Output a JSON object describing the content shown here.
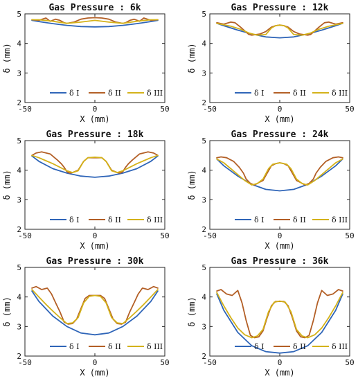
{
  "figure": {
    "xlabel": "X (mm)",
    "ylabel": "δ (mm)"
  },
  "legend": {
    "entries": [
      "δ I",
      "δ II",
      "δ III"
    ],
    "colors": [
      "#2f65b8",
      "#b35f26",
      "#d4b21a"
    ],
    "placement": "bottom-right"
  },
  "chart_data": [
    {
      "type": "line",
      "title": "Gas Pressure : 6k",
      "xlabel": "X (mm)",
      "ylabel": "δ (mm)",
      "xlim": [
        -50,
        50
      ],
      "ylim": [
        2,
        5
      ],
      "xticks": [
        -50,
        0,
        50
      ],
      "yticks": [
        2,
        3,
        4,
        5
      ],
      "series": [
        {
          "name": "δ I",
          "x": [
            -45,
            -40,
            -30,
            -20,
            -10,
            0,
            10,
            20,
            30,
            40,
            45
          ],
          "y": [
            4.78,
            4.74,
            4.67,
            4.61,
            4.57,
            4.56,
            4.57,
            4.61,
            4.67,
            4.74,
            4.78
          ]
        },
        {
          "name": "δ II",
          "x": [
            -45,
            -40,
            -35,
            -32,
            -28,
            -25,
            -22,
            -20,
            -15,
            -10,
            -5,
            0,
            5,
            10,
            15,
            20,
            22,
            25,
            28,
            32,
            35,
            40,
            45
          ],
          "y": [
            4.8,
            4.78,
            4.86,
            4.75,
            4.82,
            4.78,
            4.7,
            4.68,
            4.72,
            4.82,
            4.86,
            4.87,
            4.86,
            4.82,
            4.72,
            4.68,
            4.7,
            4.78,
            4.82,
            4.75,
            4.86,
            4.78,
            4.8
          ]
        },
        {
          "name": "δ III",
          "x": [
            -45,
            -40,
            -30,
            -20,
            -10,
            0,
            10,
            20,
            30,
            40,
            45
          ],
          "y": [
            4.8,
            4.8,
            4.75,
            4.68,
            4.72,
            4.78,
            4.72,
            4.68,
            4.75,
            4.8,
            4.8
          ]
        }
      ]
    },
    {
      "type": "line",
      "title": "Gas Pressure : 12k",
      "xlabel": "X (mm)",
      "ylabel": "δ (mm)",
      "xlim": [
        -50,
        50
      ],
      "ylim": [
        2,
        5
      ],
      "xticks": [
        -50,
        0,
        50
      ],
      "yticks": [
        2,
        3,
        4,
        5
      ],
      "series": [
        {
          "name": "δ I",
          "x": [
            -45,
            -40,
            -30,
            -20,
            -10,
            0,
            10,
            20,
            30,
            40,
            45
          ],
          "y": [
            4.68,
            4.6,
            4.45,
            4.32,
            4.22,
            4.19,
            4.22,
            4.32,
            4.45,
            4.6,
            4.68
          ]
        },
        {
          "name": "δ II",
          "x": [
            -45,
            -40,
            -35,
            -32,
            -28,
            -25,
            -22,
            -20,
            -17,
            -14,
            -10,
            -6,
            -3,
            0,
            3,
            6,
            10,
            14,
            17,
            20,
            22,
            25,
            28,
            32,
            35,
            40,
            45
          ],
          "y": [
            4.7,
            4.65,
            4.72,
            4.7,
            4.55,
            4.42,
            4.3,
            4.28,
            4.3,
            4.32,
            4.4,
            4.55,
            4.6,
            4.62,
            4.6,
            4.55,
            4.4,
            4.32,
            4.3,
            4.28,
            4.3,
            4.42,
            4.55,
            4.7,
            4.72,
            4.65,
            4.7
          ]
        },
        {
          "name": "δ III",
          "x": [
            -45,
            -40,
            -35,
            -28,
            -22,
            -16,
            -10,
            -6,
            -3,
            0,
            3,
            6,
            10,
            16,
            22,
            28,
            35,
            40,
            45
          ],
          "y": [
            4.68,
            4.63,
            4.58,
            4.48,
            4.35,
            4.28,
            4.3,
            4.52,
            4.6,
            4.62,
            4.6,
            4.52,
            4.3,
            4.28,
            4.35,
            4.48,
            4.58,
            4.63,
            4.68
          ]
        }
      ]
    },
    {
      "type": "line",
      "title": "Gas Pressure : 18k",
      "xlabel": "X (mm)",
      "ylabel": "δ (mm)",
      "xlim": [
        -50,
        50
      ],
      "ylim": [
        2,
        5
      ],
      "xticks": [
        -50,
        0,
        50
      ],
      "yticks": [
        2,
        3,
        4,
        5
      ],
      "series": [
        {
          "name": "δ I",
          "x": [
            -45,
            -40,
            -30,
            -20,
            -10,
            0,
            10,
            20,
            30,
            40,
            45
          ],
          "y": [
            4.48,
            4.3,
            4.05,
            3.9,
            3.8,
            3.76,
            3.8,
            3.9,
            4.05,
            4.3,
            4.48
          ]
        },
        {
          "name": "δ II",
          "x": [
            -45,
            -42,
            -38,
            -32,
            -27,
            -24,
            -22,
            -20,
            -18,
            -16,
            -12,
            -8,
            -5,
            0,
            5,
            8,
            12,
            16,
            18,
            20,
            22,
            24,
            27,
            32,
            38,
            42,
            45
          ],
          "y": [
            4.5,
            4.58,
            4.62,
            4.55,
            4.35,
            4.22,
            4.1,
            3.95,
            3.9,
            3.92,
            4.0,
            4.3,
            4.42,
            4.42,
            4.42,
            4.3,
            4.0,
            3.92,
            3.9,
            3.95,
            4.1,
            4.22,
            4.35,
            4.55,
            4.62,
            4.58,
            4.5
          ]
        },
        {
          "name": "δ III",
          "x": [
            -45,
            -40,
            -35,
            -30,
            -25,
            -20,
            -16,
            -12,
            -8,
            -5,
            0,
            5,
            8,
            12,
            16,
            20,
            25,
            30,
            35,
            40,
            45
          ],
          "y": [
            4.5,
            4.42,
            4.32,
            4.22,
            4.1,
            3.98,
            3.92,
            3.98,
            4.3,
            4.42,
            4.44,
            4.42,
            4.3,
            3.98,
            3.92,
            3.98,
            4.1,
            4.22,
            4.32,
            4.42,
            4.5
          ]
        }
      ]
    },
    {
      "type": "line",
      "title": "Gas Pressure : 24k",
      "xlabel": "X (mm)",
      "ylabel": "δ (mm)",
      "xlim": [
        -50,
        50
      ],
      "ylim": [
        2,
        5
      ],
      "xticks": [
        -50,
        0,
        50
      ],
      "yticks": [
        2,
        3,
        4,
        5
      ],
      "series": [
        {
          "name": "δ I",
          "x": [
            -45,
            -40,
            -30,
            -20,
            -10,
            0,
            10,
            20,
            30,
            40,
            45
          ],
          "y": [
            4.38,
            4.15,
            3.8,
            3.52,
            3.35,
            3.3,
            3.35,
            3.52,
            3.8,
            4.15,
            4.38
          ]
        },
        {
          "name": "δ II",
          "x": [
            -45,
            -42,
            -38,
            -33,
            -29,
            -26,
            -24,
            -21,
            -18,
            -15,
            -12,
            -9,
            -6,
            -3,
            0,
            3,
            6,
            9,
            12,
            15,
            18,
            21,
            24,
            26,
            29,
            33,
            38,
            42,
            45
          ],
          "y": [
            4.42,
            4.45,
            4.42,
            4.3,
            4.1,
            3.9,
            3.7,
            3.55,
            3.5,
            3.58,
            3.65,
            3.9,
            4.15,
            4.22,
            4.25,
            4.22,
            4.15,
            3.9,
            3.65,
            3.58,
            3.5,
            3.55,
            3.7,
            3.9,
            4.1,
            4.3,
            4.42,
            4.45,
            4.42
          ]
        },
        {
          "name": "δ III",
          "x": [
            -45,
            -40,
            -35,
            -30,
            -25,
            -20,
            -16,
            -12,
            -8,
            -5,
            0,
            5,
            8,
            12,
            16,
            20,
            25,
            30,
            35,
            40,
            45
          ],
          "y": [
            4.38,
            4.25,
            4.05,
            3.85,
            3.65,
            3.5,
            3.55,
            3.7,
            4.05,
            4.2,
            4.25,
            4.2,
            4.05,
            3.7,
            3.55,
            3.5,
            3.65,
            3.85,
            4.05,
            4.25,
            4.38
          ]
        }
      ]
    },
    {
      "type": "line",
      "title": "Gas Pressure : 30k",
      "xlabel": "X (mm)",
      "ylabel": "δ (mm)",
      "xlim": [
        -50,
        50
      ],
      "ylim": [
        2,
        5
      ],
      "xticks": [
        -50,
        0,
        50
      ],
      "yticks": [
        2,
        3,
        4,
        5
      ],
      "series": [
        {
          "name": "δ I",
          "x": [
            -45,
            -40,
            -30,
            -20,
            -10,
            0,
            10,
            20,
            30,
            40,
            45
          ],
          "y": [
            4.2,
            3.85,
            3.35,
            3.0,
            2.78,
            2.72,
            2.78,
            3.0,
            3.35,
            3.85,
            4.2
          ]
        },
        {
          "name": "δ II",
          "x": [
            -45,
            -42,
            -38,
            -34,
            -31,
            -28,
            -25,
            -22,
            -19,
            -16,
            -13,
            -10,
            -7,
            -4,
            0,
            4,
            7,
            10,
            13,
            16,
            19,
            22,
            25,
            28,
            31,
            34,
            38,
            42,
            45
          ],
          "y": [
            4.3,
            4.35,
            4.25,
            4.3,
            4.1,
            3.8,
            3.5,
            3.15,
            3.08,
            3.1,
            3.25,
            3.6,
            3.95,
            4.05,
            4.05,
            4.05,
            3.95,
            3.6,
            3.25,
            3.1,
            3.08,
            3.15,
            3.5,
            3.8,
            4.1,
            4.3,
            4.25,
            4.35,
            4.3
          ]
        },
        {
          "name": "δ III",
          "x": [
            -45,
            -40,
            -35,
            -30,
            -25,
            -20,
            -16,
            -12,
            -8,
            -4,
            0,
            4,
            8,
            12,
            16,
            20,
            25,
            30,
            35,
            40,
            45
          ],
          "y": [
            4.25,
            4.0,
            3.75,
            3.52,
            3.3,
            3.1,
            3.12,
            3.3,
            3.8,
            4.02,
            4.05,
            4.02,
            3.8,
            3.3,
            3.12,
            3.1,
            3.3,
            3.52,
            3.75,
            4.0,
            4.25
          ]
        }
      ]
    },
    {
      "type": "line",
      "title": "Gas Pressure : 36k",
      "xlabel": "X (mm)",
      "ylabel": "δ (mm)",
      "xlim": [
        -50,
        50
      ],
      "ylim": [
        2,
        5
      ],
      "xticks": [
        -50,
        0,
        50
      ],
      "yticks": [
        2,
        3,
        4,
        5
      ],
      "series": [
        {
          "name": "δ I",
          "x": [
            -45,
            -40,
            -30,
            -20,
            -10,
            0,
            10,
            20,
            30,
            40,
            45
          ],
          "y": [
            4.1,
            3.55,
            2.8,
            2.35,
            2.15,
            2.1,
            2.15,
            2.35,
            2.8,
            3.55,
            4.1
          ]
        },
        {
          "name": "δ II",
          "x": [
            -45,
            -42,
            -38,
            -34,
            -30,
            -27,
            -24,
            -21,
            -18,
            -15,
            -12,
            -9,
            -6,
            -3,
            0,
            3,
            6,
            9,
            12,
            15,
            18,
            21,
            24,
            27,
            30,
            34,
            38,
            42,
            45
          ],
          "y": [
            4.2,
            4.25,
            4.1,
            4.05,
            4.22,
            3.8,
            3.2,
            2.7,
            2.62,
            2.65,
            2.85,
            3.3,
            3.7,
            3.85,
            3.85,
            3.85,
            3.7,
            3.3,
            2.85,
            2.65,
            2.62,
            2.7,
            3.2,
            3.8,
            4.22,
            4.05,
            4.1,
            4.25,
            4.2
          ]
        },
        {
          "name": "δ III",
          "x": [
            -45,
            -40,
            -35,
            -30,
            -25,
            -20,
            -16,
            -12,
            -8,
            -4,
            0,
            4,
            8,
            12,
            16,
            20,
            25,
            30,
            35,
            40,
            45
          ],
          "y": [
            4.15,
            3.7,
            3.3,
            2.95,
            2.72,
            2.62,
            2.68,
            2.9,
            3.5,
            3.82,
            3.86,
            3.82,
            3.5,
            2.9,
            2.68,
            2.62,
            2.72,
            2.95,
            3.3,
            3.7,
            4.15
          ]
        }
      ]
    }
  ]
}
